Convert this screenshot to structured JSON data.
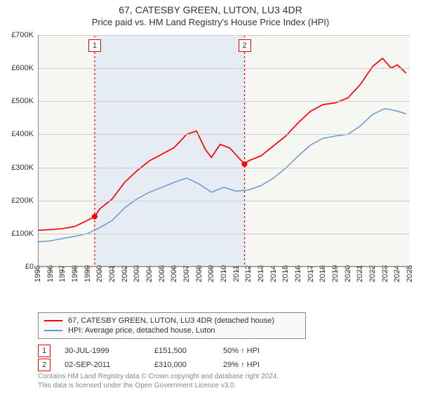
{
  "chart": {
    "title": "67, CATESBY GREEN, LUTON, LU3 4DR",
    "subtitle": "Price paid vs. HM Land Registry's House Price Index (HPI)",
    "background_color": "#f6f6f3",
    "shade_color": "#e5ecf3",
    "grid_color": "#cccccc",
    "axis_color": "#888888",
    "yaxis": {
      "min": 0,
      "max": 700000,
      "ticks": [
        0,
        100000,
        200000,
        300000,
        400000,
        500000,
        600000,
        700000
      ],
      "labels": [
        "£0",
        "£100K",
        "£200K",
        "£300K",
        "£400K",
        "£500K",
        "£600K",
        "£700K"
      ],
      "fontsize": 11
    },
    "xaxis": {
      "min": 1995,
      "max": 2025,
      "ticks": [
        1995,
        1996,
        1997,
        1998,
        1999,
        2000,
        2001,
        2002,
        2003,
        2004,
        2005,
        2006,
        2007,
        2008,
        2009,
        2010,
        2011,
        2012,
        2013,
        2014,
        2015,
        2016,
        2017,
        2018,
        2019,
        2020,
        2021,
        2022,
        2023,
        2024,
        2025
      ],
      "fontsize": 11
    },
    "shade_band": {
      "from": 1999.58,
      "to": 2011.67
    },
    "series": [
      {
        "name": "price_paid",
        "color": "#ff0000",
        "width": 1.7,
        "points": [
          [
            1995,
            110000
          ],
          [
            1996,
            112000
          ],
          [
            1997,
            115000
          ],
          [
            1998,
            122000
          ],
          [
            1999,
            140000
          ],
          [
            1999.58,
            151500
          ],
          [
            2000,
            175000
          ],
          [
            2001,
            205000
          ],
          [
            2002,
            255000
          ],
          [
            2003,
            290000
          ],
          [
            2004,
            320000
          ],
          [
            2005,
            340000
          ],
          [
            2006,
            360000
          ],
          [
            2007,
            400000
          ],
          [
            2007.8,
            410000
          ],
          [
            2008.5,
            355000
          ],
          [
            2009,
            330000
          ],
          [
            2009.7,
            370000
          ],
          [
            2010.5,
            358000
          ],
          [
            2011.67,
            310000
          ],
          [
            2012,
            320000
          ],
          [
            2013,
            335000
          ],
          [
            2014,
            365000
          ],
          [
            2015,
            395000
          ],
          [
            2016,
            435000
          ],
          [
            2017,
            470000
          ],
          [
            2018,
            490000
          ],
          [
            2019,
            495000
          ],
          [
            2020,
            510000
          ],
          [
            2021,
            550000
          ],
          [
            2022,
            605000
          ],
          [
            2022.8,
            630000
          ],
          [
            2023.5,
            600000
          ],
          [
            2024,
            610000
          ],
          [
            2024.7,
            585000
          ]
        ]
      },
      {
        "name": "hpi",
        "color": "#6699cc",
        "width": 1.5,
        "points": [
          [
            1995,
            75000
          ],
          [
            1996,
            78000
          ],
          [
            1997,
            85000
          ],
          [
            1998,
            92000
          ],
          [
            1999,
            100000
          ],
          [
            2000,
            118000
          ],
          [
            2001,
            140000
          ],
          [
            2002,
            178000
          ],
          [
            2003,
            205000
          ],
          [
            2004,
            225000
          ],
          [
            2005,
            240000
          ],
          [
            2006,
            255000
          ],
          [
            2007,
            268000
          ],
          [
            2008,
            250000
          ],
          [
            2009,
            225000
          ],
          [
            2010,
            240000
          ],
          [
            2011,
            228000
          ],
          [
            2012,
            232000
          ],
          [
            2013,
            245000
          ],
          [
            2014,
            268000
          ],
          [
            2015,
            298000
          ],
          [
            2016,
            335000
          ],
          [
            2017,
            368000
          ],
          [
            2018,
            388000
          ],
          [
            2019,
            395000
          ],
          [
            2020,
            400000
          ],
          [
            2021,
            425000
          ],
          [
            2022,
            460000
          ],
          [
            2023,
            478000
          ],
          [
            2024,
            470000
          ],
          [
            2024.7,
            462000
          ]
        ]
      }
    ],
    "markers": [
      {
        "num": "1",
        "x": 1999.58,
        "y": 151500
      },
      {
        "num": "2",
        "x": 2011.67,
        "y": 310000
      }
    ]
  },
  "legend": {
    "items": [
      {
        "color": "#ff0000",
        "label": "67, CATESBY GREEN, LUTON, LU3 4DR (detached house)"
      },
      {
        "color": "#6699cc",
        "label": "HPI: Average price, detached house, Luton"
      }
    ]
  },
  "sales": [
    {
      "num": "1",
      "date": "30-JUL-1999",
      "price": "£151,500",
      "vs": "50% ↑ HPI"
    },
    {
      "num": "2",
      "date": "02-SEP-2011",
      "price": "£310,000",
      "vs": "29% ↑ HPI"
    }
  ],
  "attribution": {
    "line1": "Contains HM Land Registry data © Crown copyright and database right 2024.",
    "line2": "This data is licensed under the Open Government Licence v3.0."
  }
}
